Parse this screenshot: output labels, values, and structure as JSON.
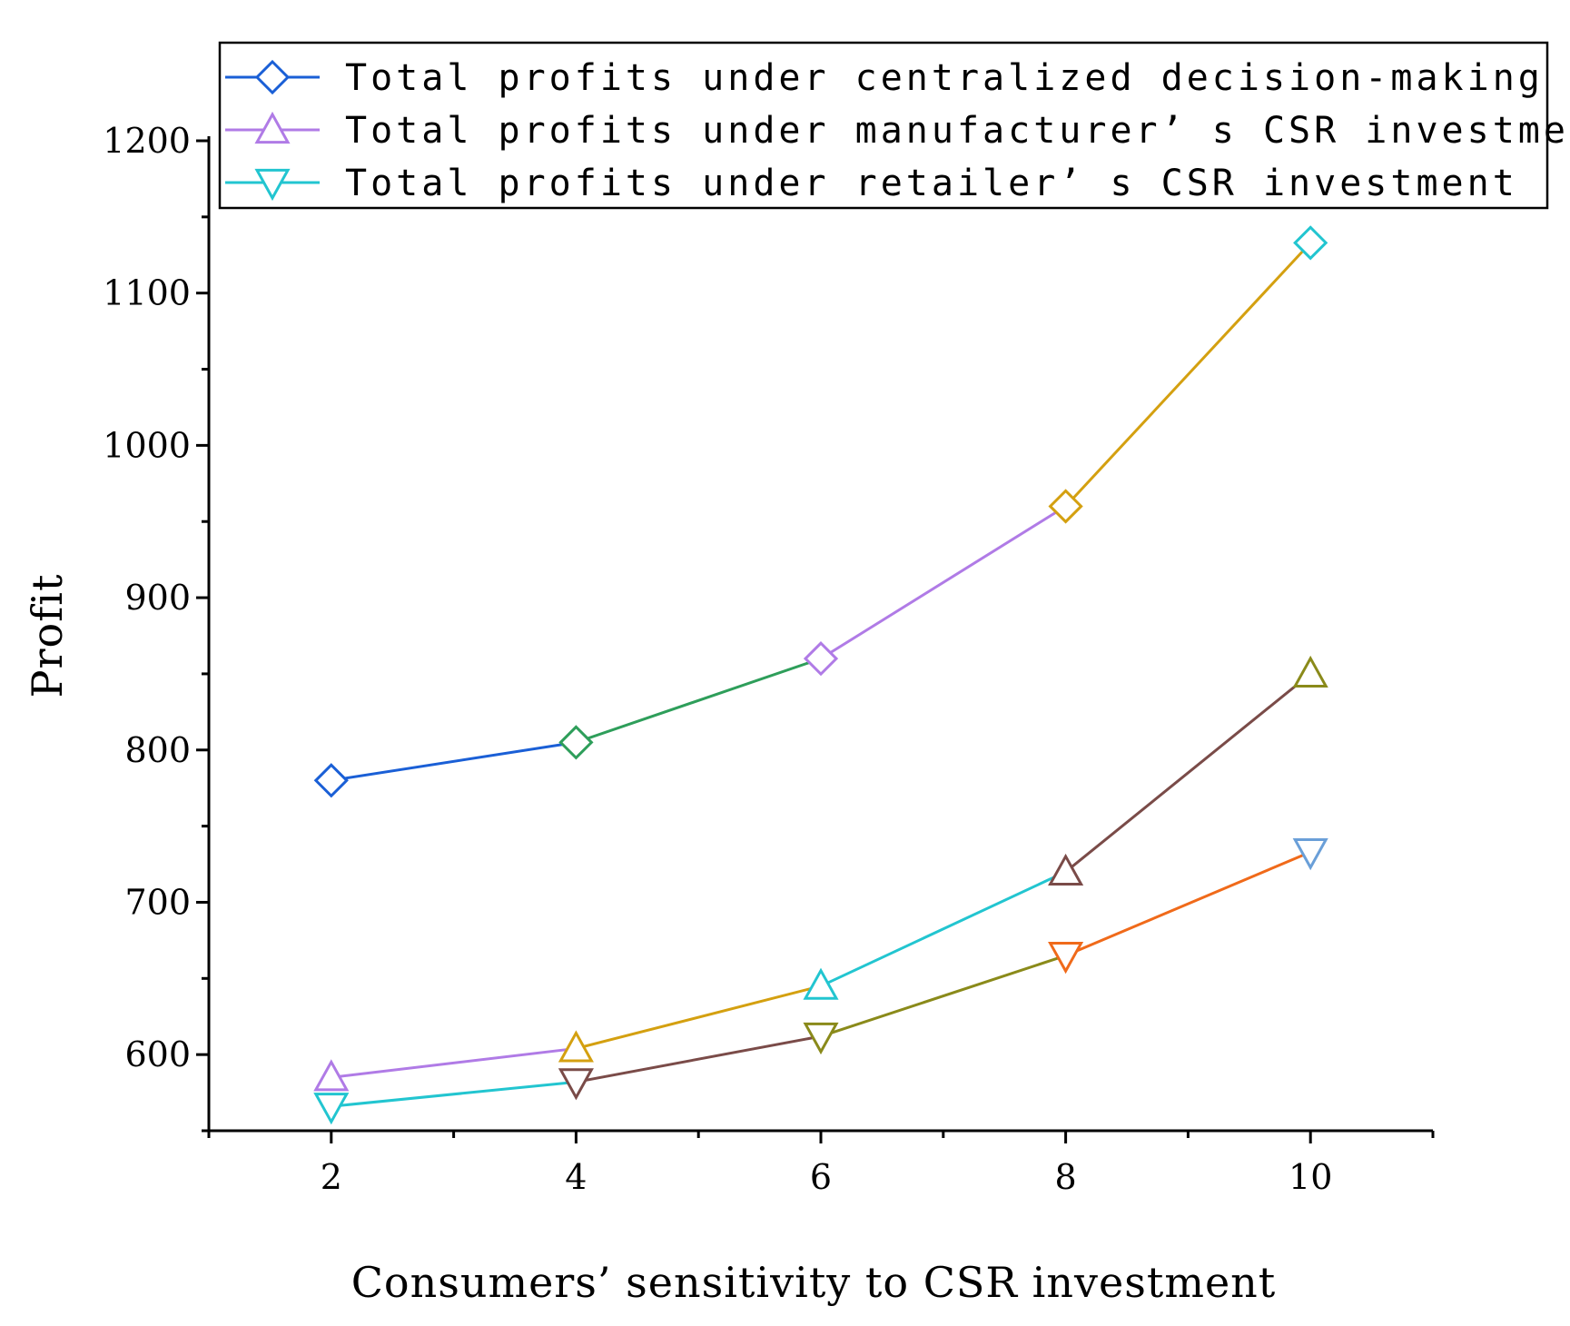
{
  "chart_data": {
    "type": "line",
    "title": "",
    "xlabel": "Consumers’ sensitivity to CSR investment",
    "ylabel": "Profit",
    "x": [
      2,
      4,
      6,
      8,
      10
    ],
    "xticks": [
      2,
      4,
      6,
      8,
      10
    ],
    "xtick_labels": [
      "2",
      "4",
      "6",
      "8",
      "10"
    ],
    "yticks": [
      600,
      700,
      800,
      900,
      1000,
      1100,
      1200
    ],
    "ytick_labels": [
      "600",
      "700",
      "800",
      "900",
      "1000",
      "1100",
      "1200"
    ],
    "xlim": [
      1,
      11
    ],
    "ylim": [
      550,
      1200
    ],
    "grid": false,
    "legend_position": "top",
    "series": [
      {
        "name": "Total profits under centralized decision-making",
        "marker": "diamond",
        "values": [
          780,
          805,
          860,
          960,
          1133
        ],
        "segment_colors": [
          "#1a5fd6",
          "#2e9e5a",
          "#b07be6",
          "#d4a010"
        ],
        "marker_colors": [
          "#1a5fd6",
          "#2e9e5a",
          "#b07be6",
          "#d4a010",
          "#22c5d0"
        ],
        "legend_color": "#1a5fd6"
      },
      {
        "name": "Total profits under manufacturer’ s CSR investment",
        "marker": "triangle-up",
        "values": [
          585,
          604,
          645,
          720,
          850
        ],
        "segment_colors": [
          "#b07be6",
          "#d4a010",
          "#22c5d0",
          "#7a4b48"
        ],
        "marker_colors": [
          "#b07be6",
          "#d4a010",
          "#22c5d0",
          "#7a4b48",
          "#8a8a1a"
        ],
        "legend_color": "#b07be6"
      },
      {
        "name": "Total profits under retailer’ s CSR investment",
        "marker": "triangle-down",
        "values": [
          566,
          582,
          612,
          665,
          733
        ],
        "segment_colors": [
          "#22c5d0",
          "#7a4b48",
          "#8a8a1a",
          "#f06a1a"
        ],
        "marker_colors": [
          "#22c5d0",
          "#7a4b48",
          "#8a8a1a",
          "#f06a1a",
          "#6a9fd8"
        ],
        "legend_color": "#22c5d0"
      }
    ]
  }
}
